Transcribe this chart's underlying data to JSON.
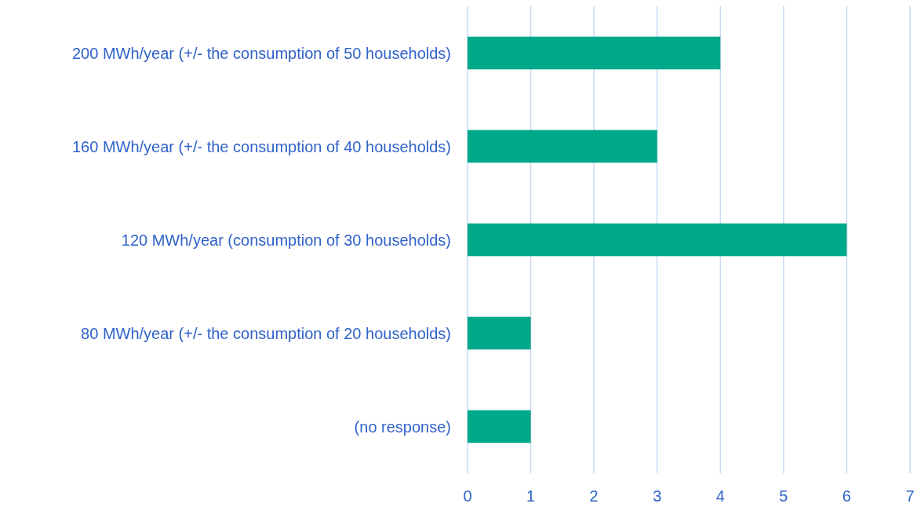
{
  "chart_data": {
    "type": "bar",
    "orientation": "horizontal",
    "categories": [
      "200 MWh/year (+/- the consumption of 50 households)",
      "160 MWh/year (+/- the consumption of 40 households)",
      "120 MWh/year (consumption of 30 households)",
      "80 MWh/year (+/- the consumption of 20 households)",
      "(no response)"
    ],
    "values": [
      4,
      3,
      6,
      1,
      1
    ],
    "color": "#00a88a",
    "xlim": [
      0,
      7
    ],
    "xticks": [
      0,
      1,
      2,
      3,
      4,
      5,
      6,
      7
    ],
    "grid": "x"
  }
}
